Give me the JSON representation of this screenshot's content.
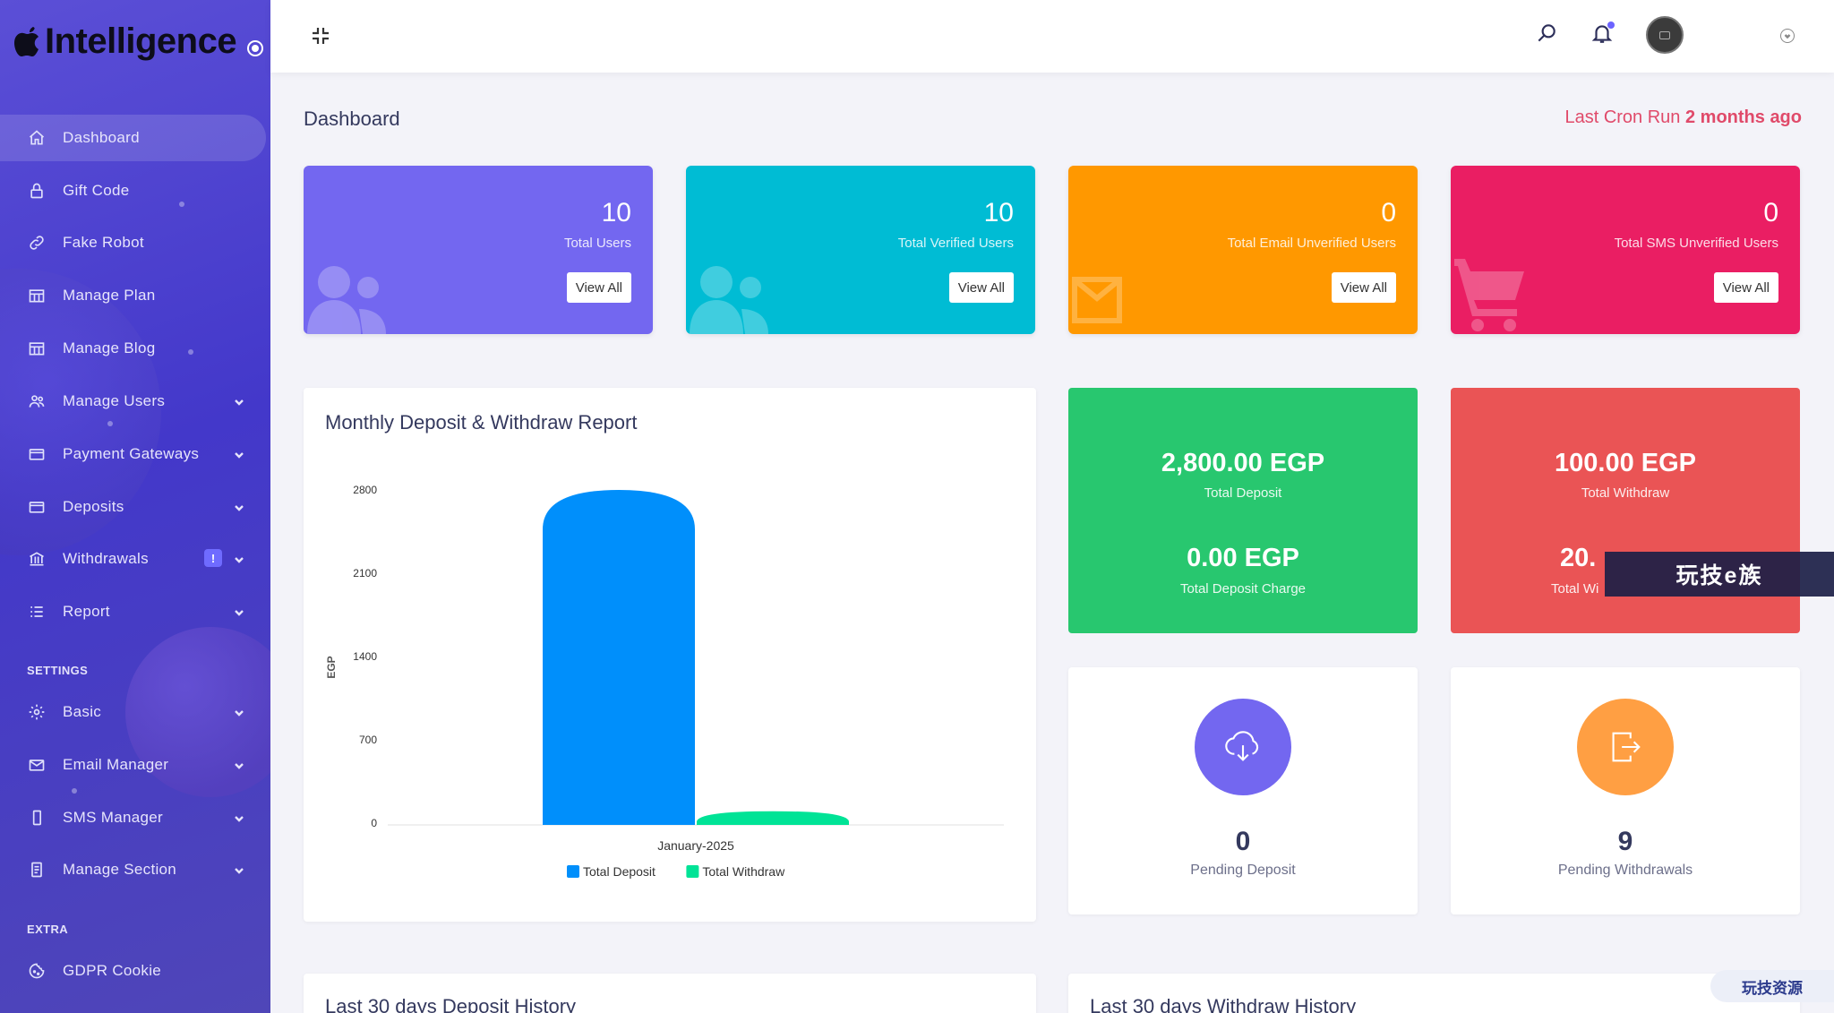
{
  "brand": {
    "name": "Intelligence"
  },
  "sidebar": {
    "items": [
      {
        "label": "Dashboard",
        "icon": "home-icon"
      },
      {
        "label": "Gift Code",
        "icon": "lock-icon"
      },
      {
        "label": "Fake Robot",
        "icon": "link-icon"
      },
      {
        "label": "Manage Plan",
        "icon": "grid-icon"
      },
      {
        "label": "Manage Blog",
        "icon": "grid-icon"
      },
      {
        "label": "Manage Users",
        "icon": "users-icon"
      },
      {
        "label": "Payment Gateways",
        "icon": "card-icon"
      },
      {
        "label": "Deposits",
        "icon": "card-icon"
      },
      {
        "label": "Withdrawals",
        "icon": "bank-icon",
        "badge": "!"
      },
      {
        "label": "Report",
        "icon": "list-icon"
      }
    ],
    "settings_title": "SETTINGS",
    "settings_items": [
      {
        "label": "Basic",
        "icon": "gear-icon"
      },
      {
        "label": "Email Manager",
        "icon": "mail-icon"
      },
      {
        "label": "SMS Manager",
        "icon": "phone-icon"
      },
      {
        "label": "Manage Section",
        "icon": "doc-icon"
      }
    ],
    "extra_title": "EXTRA",
    "extra_items": [
      {
        "label": "GDPR Cookie",
        "icon": "cookie-icon"
      }
    ]
  },
  "header": {
    "page_title": "Dashboard",
    "cron_prefix": "Last Cron Run",
    "cron_value": "2 months ago"
  },
  "stats": [
    {
      "value": "10",
      "label": "Total Users",
      "button": "View All",
      "color": "#7367f0",
      "icon": "users-icon"
    },
    {
      "value": "10",
      "label": "Total Verified Users",
      "button": "View All",
      "color": "#00bcd4",
      "icon": "users-icon"
    },
    {
      "value": "0",
      "label": "Total Email Unverified Users",
      "button": "View All",
      "color": "#ff9800",
      "icon": "envelope-icon"
    },
    {
      "value": "0",
      "label": "Total SMS Unverified Users",
      "button": "View All",
      "color": "#ea1e63",
      "icon": "cart-icon"
    }
  ],
  "chart_panel": {
    "title": "Monthly Deposit & Withdraw Report"
  },
  "chart_data": {
    "type": "bar",
    "title": "Monthly Deposit & Withdraw Report",
    "categories": [
      "January-2025"
    ],
    "series": [
      {
        "name": "Total Deposit",
        "values": [
          2800
        ],
        "color": "#008ffb"
      },
      {
        "name": "Total Withdraw",
        "values": [
          100
        ],
        "color": "#00e396"
      }
    ],
    "ylabel": "EGP",
    "ylim": [
      0,
      2800
    ],
    "yticks": [
      "2800",
      "2100",
      "1400",
      "700",
      "0"
    ],
    "legend": "bottom-center",
    "grid": false
  },
  "money": {
    "deposit": {
      "amount": "2,800.00 EGP",
      "caption": "Total Deposit",
      "charge_amount": "0.00 EGP",
      "charge_caption": "Total Deposit Charge",
      "color": "#28c76f"
    },
    "withdraw": {
      "amount": "100.00 EGP",
      "caption": "Total Withdraw",
      "charge_amount": "20.",
      "charge_caption": "Total Wi",
      "color": "#ea5455"
    }
  },
  "pending": {
    "deposit": {
      "value": "0",
      "label": "Pending Deposit",
      "color": "#7367f0",
      "icon": "cloud-download-icon"
    },
    "withdraw": {
      "value": "9",
      "label": "Pending Withdrawals",
      "color": "#ff9f43",
      "icon": "exit-icon"
    }
  },
  "history": {
    "deposit_title": "Last 30 days Deposit History",
    "withdraw_title": "Last 30 days Withdraw History"
  },
  "watermark": {
    "middle": "玩技e族",
    "corner": "玩技资源"
  }
}
